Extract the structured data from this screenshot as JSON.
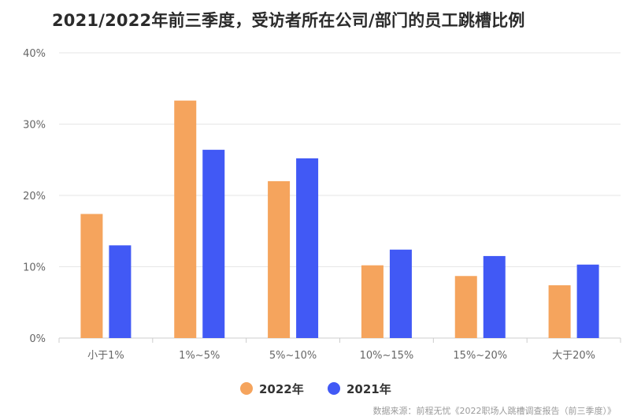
{
  "title": "2021/2022年前三季度，受访者所在公司/部门的员工跳槽比例",
  "source": "数据来源：前程无忧《2022职场人跳槽调查报告（前三季度）》",
  "chart_data": {
    "type": "bar",
    "categories": [
      "小于1%",
      "1%~5%",
      "5%~10%",
      "10%~15%",
      "15%~20%",
      "大于20%"
    ],
    "series": [
      {
        "name": "2022年",
        "color": "#F5A45D",
        "values": [
          17.4,
          33.3,
          22.0,
          10.2,
          8.7,
          7.4
        ]
      },
      {
        "name": "2021年",
        "color": "#4159F5",
        "values": [
          13.0,
          26.4,
          25.2,
          12.4,
          11.5,
          10.3
        ]
      }
    ],
    "ylim": [
      0,
      40
    ],
    "yticks": [
      "0%",
      "10%",
      "20%",
      "30%",
      "40%"
    ],
    "grid": true,
    "legend": "bottom-center"
  }
}
